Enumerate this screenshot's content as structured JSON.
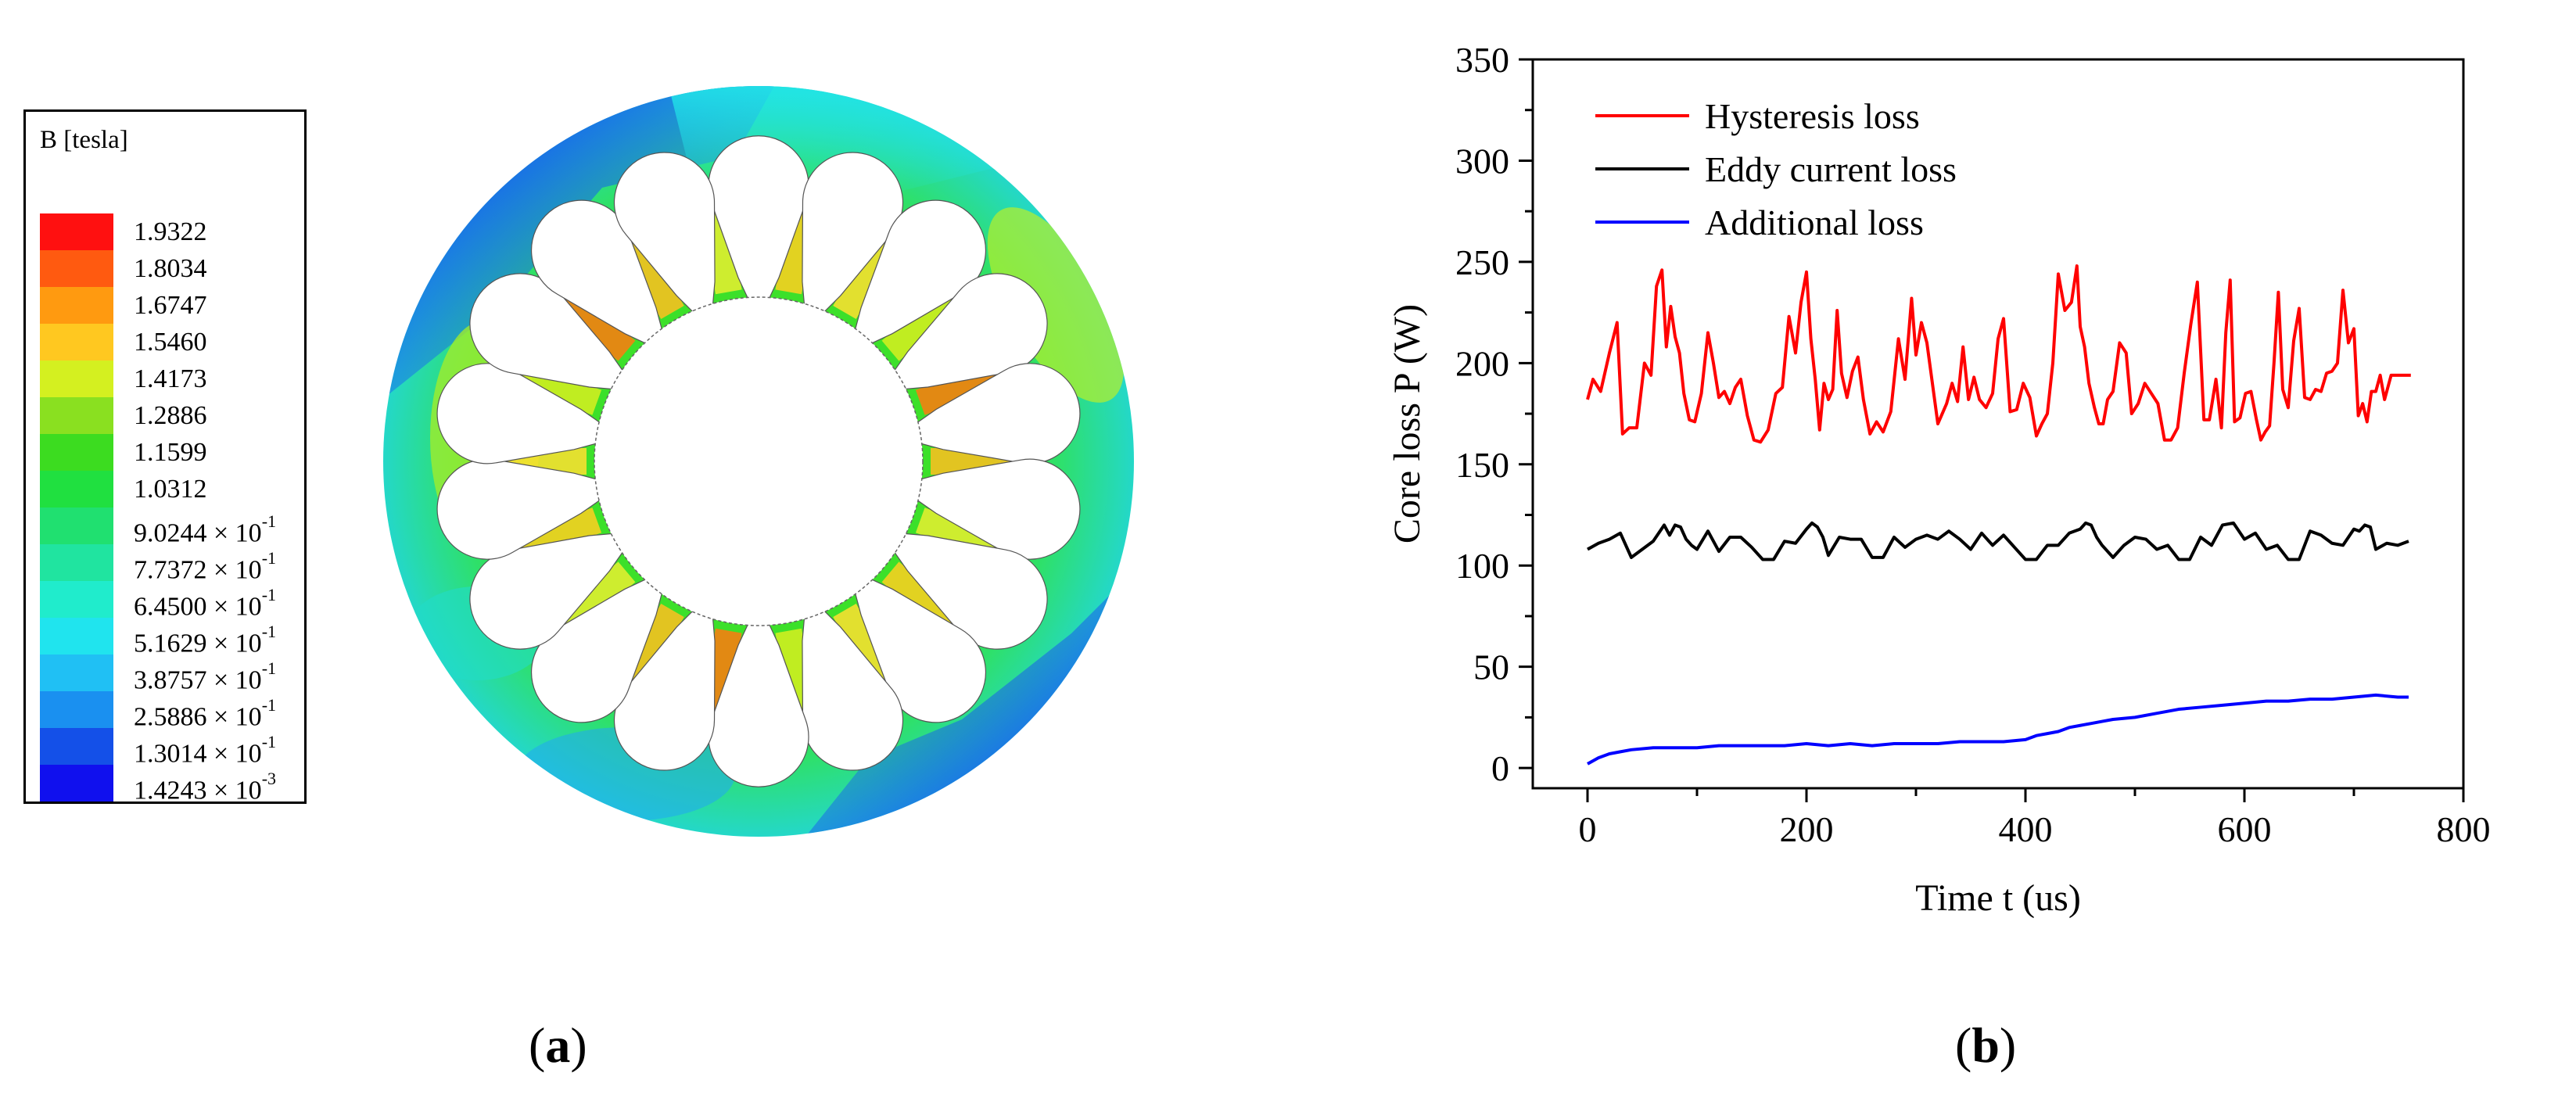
{
  "figure": {
    "panel_a_label": "a",
    "panel_b_label": "b"
  },
  "legend": {
    "title": "B  [tesla]",
    "entries": [
      {
        "value": "1.9322",
        "mant": "",
        "exp": "",
        "color": "#ff1010"
      },
      {
        "value": "1.8034",
        "mant": "",
        "exp": "",
        "color": "#ff5a10"
      },
      {
        "value": "1.6747",
        "mant": "",
        "exp": "",
        "color": "#ff9a10"
      },
      {
        "value": "1.5460",
        "mant": "",
        "exp": "",
        "color": "#ffc820"
      },
      {
        "value": "1.4173",
        "mant": "",
        "exp": "",
        "color": "#d4f020"
      },
      {
        "value": "1.2886",
        "mant": "",
        "exp": "",
        "color": "#8ae020"
      },
      {
        "value": "1.1599",
        "mant": "",
        "exp": "",
        "color": "#3cdc20"
      },
      {
        "value": "1.0312",
        "mant": "",
        "exp": "",
        "color": "#20e040"
      },
      {
        "value": "",
        "mant": "9.0244 × 10",
        "exp": "-1",
        "color": "#20e070"
      },
      {
        "value": "",
        "mant": "7.7372 × 10",
        "exp": "-1",
        "color": "#20e4a0"
      },
      {
        "value": "",
        "mant": "6.4500 × 10",
        "exp": "-1",
        "color": "#20eccc"
      },
      {
        "value": "",
        "mant": "5.1629 × 10",
        "exp": "-1",
        "color": "#20e4ee"
      },
      {
        "value": "",
        "mant": "3.8757 × 10",
        "exp": "-1",
        "color": "#20c0f4"
      },
      {
        "value": "",
        "mant": "2.5886 × 10",
        "exp": "-1",
        "color": "#1a90f0"
      },
      {
        "value": "",
        "mant": "1.3014 × 10",
        "exp": "-1",
        "color": "#1450e8"
      },
      {
        "value": "",
        "mant": "1.4243 × 10",
        "exp": "-3",
        "color": "#1010ee"
      }
    ]
  },
  "motor": {
    "slot_count": 18
  },
  "chart_data": {
    "type": "line",
    "title": "",
    "xlabel": "Time t (us)",
    "ylabel": "Core loss P (W)",
    "xlim": [
      -50,
      800
    ],
    "ylim": [
      -10,
      350
    ],
    "xticks": [
      "0",
      "200",
      "400",
      "600",
      "800"
    ],
    "yticks": [
      "0",
      "50",
      "100",
      "150",
      "200",
      "250",
      "300",
      "350"
    ],
    "legend_position": "top-left",
    "series": [
      {
        "name": "Hysteresis loss",
        "color": "#ff0000",
        "x": [
          0,
          5,
          12,
          20,
          27,
          32,
          38,
          45,
          52,
          58,
          63,
          68,
          72,
          76,
          80,
          84,
          88,
          93,
          98,
          104,
          110,
          115,
          120,
          125,
          130,
          135,
          140,
          146,
          152,
          158,
          165,
          172,
          178,
          184,
          190,
          195,
          200,
          204,
          208,
          212,
          216,
          220,
          224,
          228,
          232,
          237,
          242,
          247,
          252,
          258,
          264,
          270,
          277,
          284,
          290,
          296,
          300,
          305,
          310,
          315,
          320,
          324,
          328,
          333,
          338,
          343,
          348,
          353,
          358,
          364,
          370,
          375,
          380,
          386,
          392,
          398,
          404,
          410,
          415,
          420,
          425,
          430,
          436,
          442,
          447,
          450,
          454,
          458,
          463,
          467,
          471,
          475,
          480,
          486,
          492,
          497,
          503,
          509,
          515,
          521,
          527,
          533,
          539,
          545,
          551,
          557,
          563,
          568,
          574,
          579,
          583,
          587,
          591,
          596,
          601,
          606,
          611,
          615,
          619,
          623,
          627,
          631,
          635,
          640,
          645,
          650,
          655,
          660,
          665,
          670,
          675,
          680,
          685,
          690,
          695,
          700,
          704,
          708,
          712,
          716,
          720,
          724,
          728,
          734,
          740,
          746,
          752
        ],
        "values": [
          182,
          192,
          186,
          205,
          220,
          165,
          168,
          168,
          200,
          194,
          238,
          246,
          208,
          228,
          213,
          205,
          185,
          172,
          171,
          185,
          215,
          200,
          183,
          186,
          180,
          188,
          192,
          174,
          162,
          161,
          167,
          185,
          188,
          223,
          205,
          230,
          245,
          212,
          192,
          167,
          190,
          182,
          187,
          226,
          195,
          183,
          196,
          203,
          182,
          165,
          171,
          166,
          176,
          212,
          192,
          232,
          204,
          220,
          210,
          190,
          170,
          175,
          180,
          190,
          181,
          208,
          182,
          193,
          182,
          178,
          185,
          212,
          222,
          176,
          177,
          190,
          183,
          164,
          170,
          175,
          200,
          244,
          226,
          230,
          248,
          218,
          208,
          190,
          178,
          170,
          170,
          182,
          186,
          210,
          205,
          175,
          180,
          190,
          185,
          180,
          162,
          162,
          168,
          195,
          219,
          240,
          172,
          172,
          192,
          168,
          215,
          241,
          171,
          173,
          185,
          186,
          172,
          162,
          166,
          169,
          200,
          235,
          187,
          178,
          211,
          227,
          183,
          182,
          187,
          186,
          195,
          196,
          200,
          236,
          210,
          217,
          174,
          180,
          171,
          186,
          186,
          194,
          182,
          194,
          194,
          194,
          194
        ],
        "values_note": "digitized"
      },
      {
        "name": "Eddy current loss",
        "color": "#000000",
        "x": [
          0,
          10,
          20,
          30,
          40,
          50,
          60,
          70,
          75,
          80,
          85,
          90,
          95,
          100,
          110,
          120,
          130,
          140,
          150,
          160,
          170,
          180,
          190,
          200,
          205,
          210,
          215,
          220,
          230,
          240,
          250,
          260,
          270,
          280,
          290,
          300,
          310,
          320,
          330,
          340,
          350,
          360,
          370,
          380,
          390,
          400,
          410,
          420,
          430,
          440,
          450,
          455,
          460,
          465,
          470,
          480,
          490,
          500,
          510,
          520,
          530,
          540,
          550,
          560,
          570,
          580,
          590,
          600,
          610,
          620,
          630,
          640,
          650,
          660,
          670,
          680,
          690,
          700,
          705,
          710,
          715,
          720,
          730,
          740,
          750
        ],
        "values": [
          108,
          111,
          113,
          116,
          104,
          108,
          112,
          120,
          115,
          120,
          119,
          113,
          110,
          108,
          117,
          107,
          114,
          114,
          109,
          103,
          103,
          112,
          111,
          118,
          121,
          119,
          114,
          105,
          114,
          113,
          113,
          104,
          104,
          114,
          109,
          113,
          115,
          113,
          117,
          113,
          108,
          116,
          110,
          115,
          109,
          103,
          103,
          110,
          110,
          116,
          118,
          121,
          120,
          114,
          110,
          104,
          110,
          114,
          113,
          108,
          110,
          103,
          103,
          114,
          110,
          120,
          121,
          113,
          116,
          108,
          110,
          103,
          103,
          117,
          115,
          111,
          110,
          118,
          117,
          120,
          119,
          108,
          111,
          110,
          112
        ],
        "values_note": "digitized"
      },
      {
        "name": "Additional loss",
        "color": "#0000ff",
        "x": [
          0,
          10,
          20,
          30,
          40,
          60,
          80,
          100,
          120,
          140,
          160,
          180,
          200,
          220,
          240,
          260,
          280,
          300,
          320,
          340,
          360,
          380,
          400,
          410,
          420,
          430,
          440,
          450,
          460,
          470,
          480,
          500,
          520,
          540,
          560,
          580,
          600,
          620,
          640,
          660,
          680,
          700,
          720,
          740,
          750
        ],
        "values": [
          2,
          5,
          7,
          8,
          9,
          10,
          10,
          10,
          11,
          11,
          11,
          11,
          12,
          11,
          12,
          11,
          12,
          12,
          12,
          13,
          13,
          13,
          14,
          16,
          17,
          18,
          20,
          21,
          22,
          23,
          24,
          25,
          27,
          29,
          30,
          31,
          32,
          33,
          33,
          34,
          34,
          35,
          36,
          35,
          35
        ],
        "values_note": "digitized"
      }
    ]
  }
}
